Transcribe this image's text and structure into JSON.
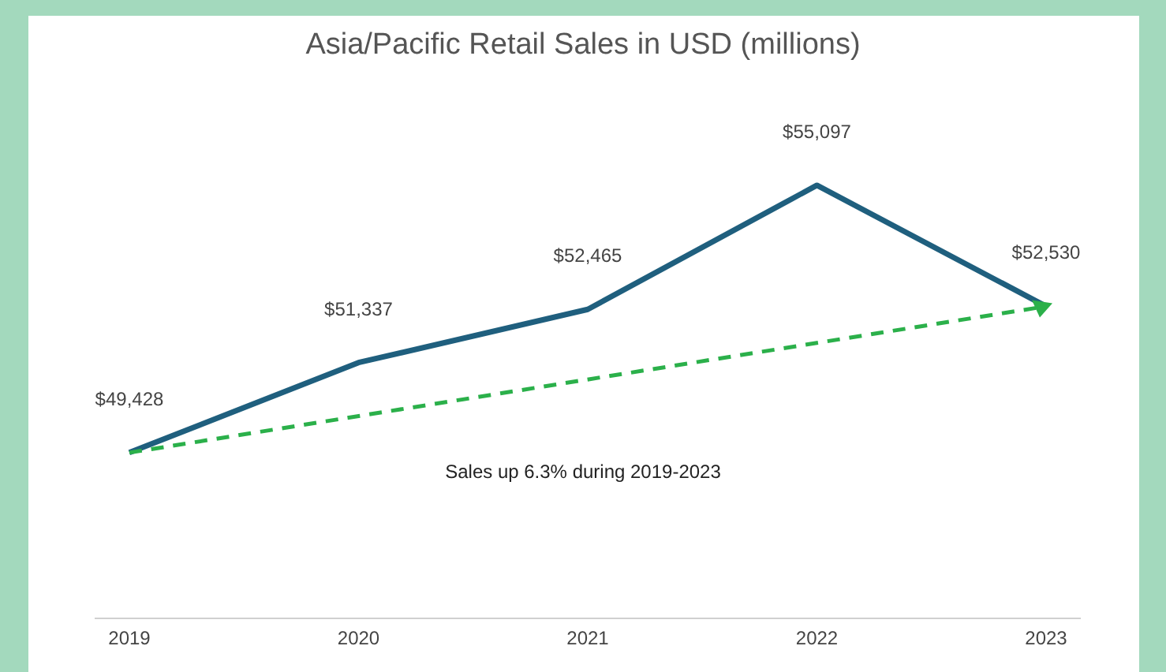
{
  "chart_data": {
    "type": "line",
    "title": "Asia/Pacific Retail Sales in USD (millions)",
    "categories": [
      "2019",
      "2020",
      "2021",
      "2022",
      "2023"
    ],
    "series": [
      {
        "color": "#1f5f7e",
        "values": [
          49428,
          51337,
          52465,
          55097,
          52530
        ],
        "value_labels": [
          "$49,428",
          "$51,337",
          "$52,465",
          "$55,097",
          "$52,530"
        ]
      },
      {
        "color": "#2bb04a",
        "line_style": "dashed",
        "values": [
          49428,
          null,
          null,
          null,
          52530
        ]
      }
    ],
    "annotations": [
      "Sales up 6.3% during 2019-2023"
    ]
  }
}
